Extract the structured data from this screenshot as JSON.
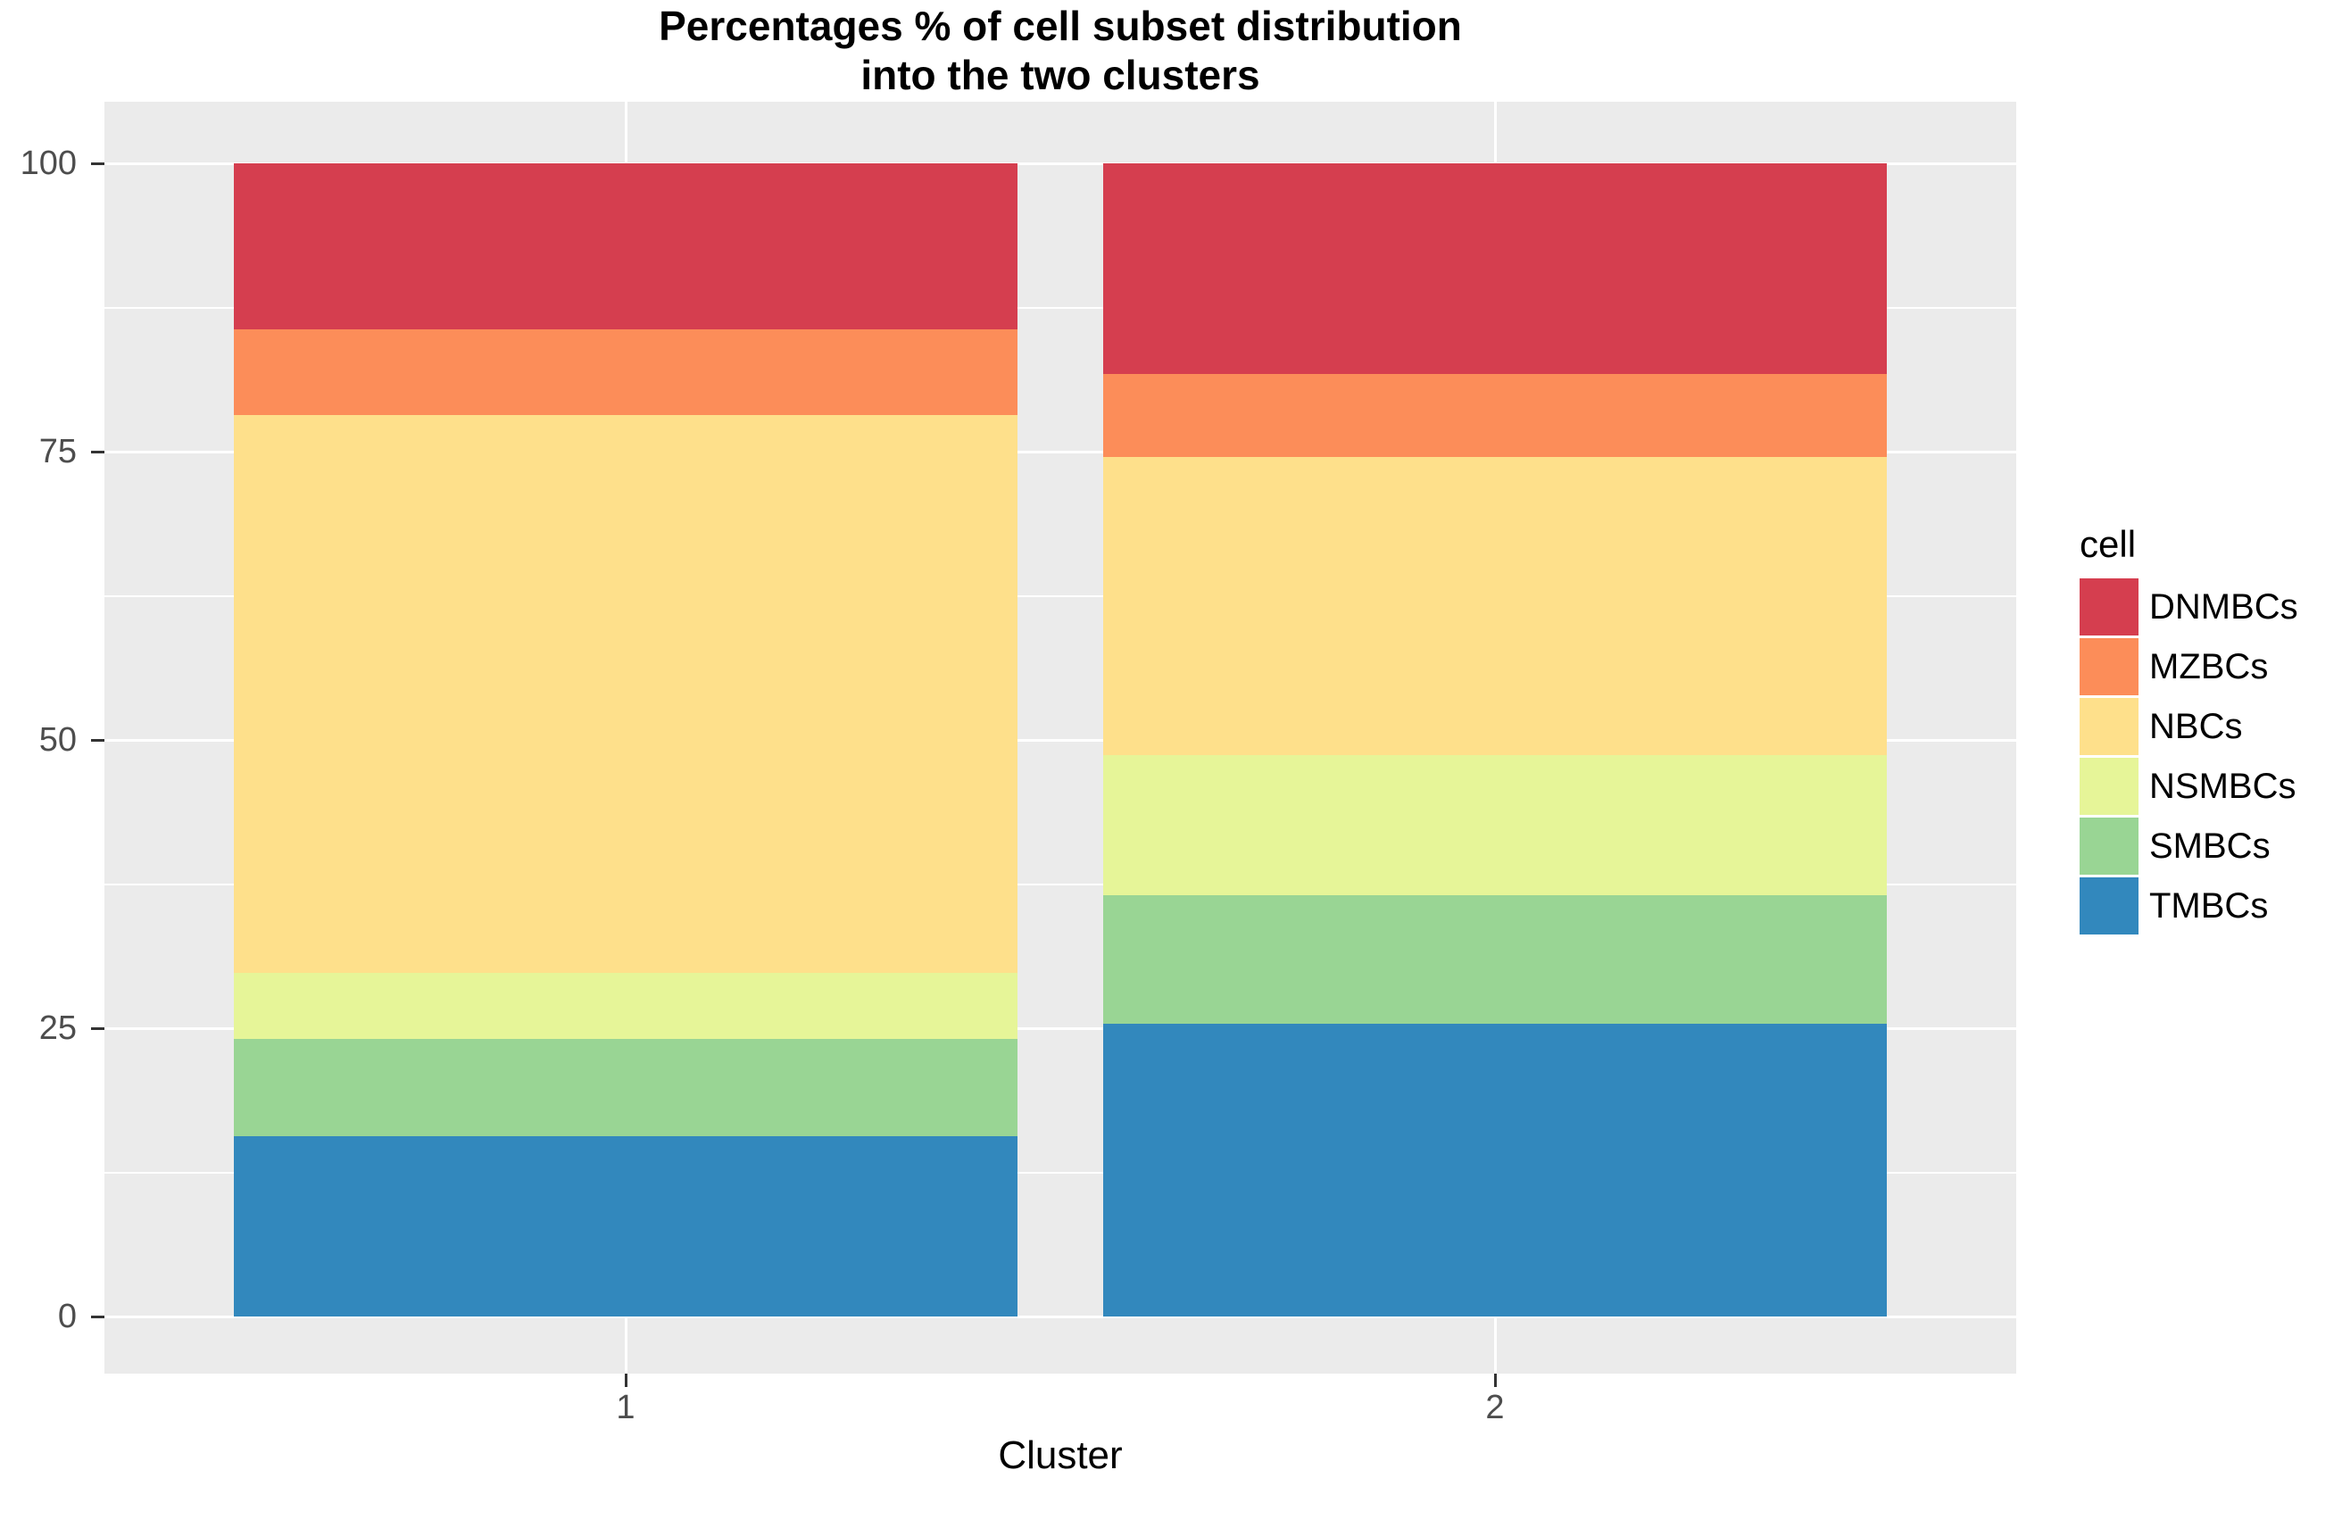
{
  "title": {
    "line1": "Percentages % of cell subset distribution",
    "line2": "into the two clusters"
  },
  "chart_data": {
    "type": "bar",
    "stacked": true,
    "orientation": "vertical",
    "title": "Percentages % of cell subset distribution into the two clusters",
    "xlabel": "Cluster",
    "ylabel": "",
    "categories": [
      "1",
      "2"
    ],
    "series": [
      {
        "name": "TMBCs",
        "color": "#3288BD",
        "values": [
          15.6,
          25.4
        ]
      },
      {
        "name": "SMBCs",
        "color": "#99D594",
        "values": [
          8.5,
          11.1
        ]
      },
      {
        "name": "NSMBCs",
        "color": "#E6F598",
        "values": [
          5.7,
          12.2
        ]
      },
      {
        "name": "NBCs",
        "color": "#FEE08B",
        "values": [
          48.4,
          25.8
        ]
      },
      {
        "name": "MZBCs",
        "color": "#FC8D59",
        "values": [
          7.4,
          7.2
        ]
      },
      {
        "name": "DNMBCs",
        "color": "#D53E4F",
        "values": [
          14.4,
          18.3
        ]
      }
    ],
    "ylim": [
      0,
      100
    ],
    "y_major_ticks": [
      0,
      25,
      50,
      75,
      100
    ],
    "y_minor_ticks": [
      12.5,
      37.5,
      62.5,
      87.5
    ],
    "legend_title": "cell",
    "legend_position": "right",
    "legend_order": [
      "DNMBCs",
      "MZBCs",
      "NBCs",
      "NSMBCs",
      "SMBCs",
      "TMBCs"
    ],
    "grid": true,
    "panel_bg": "#EBEBEB",
    "grid_color": "#FFFFFF",
    "axis_text_color": "#4D4D4D",
    "tick_color": "#333333"
  }
}
